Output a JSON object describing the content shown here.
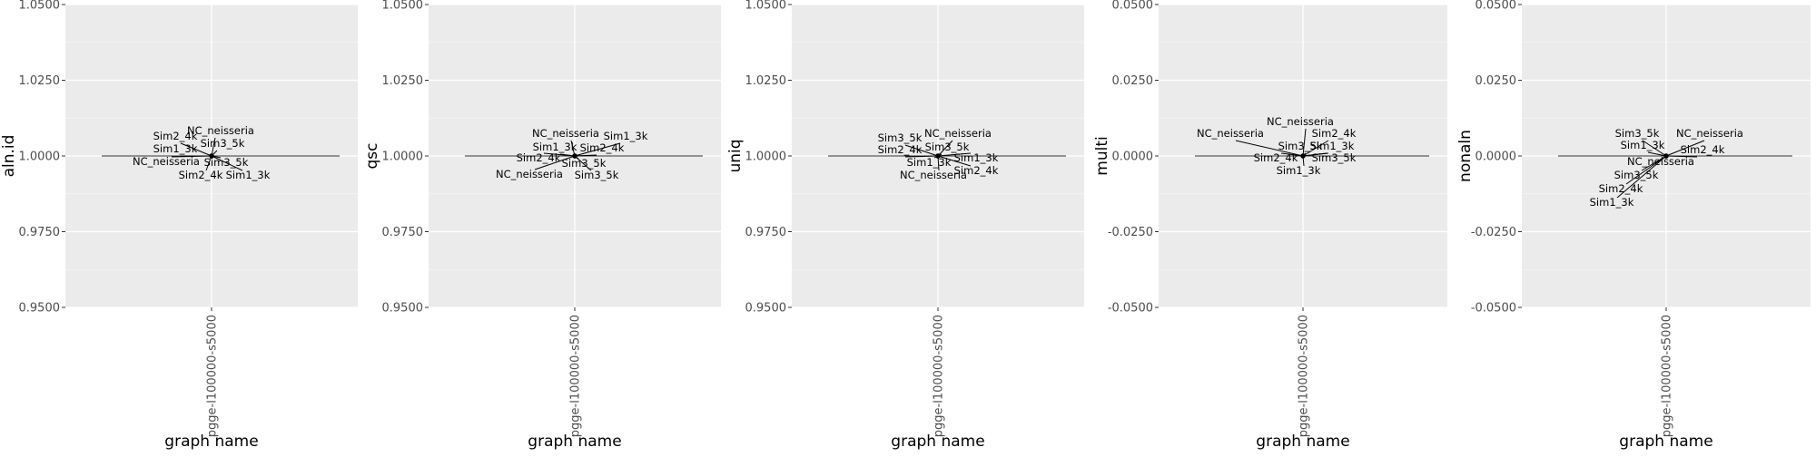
{
  "chart_data": [
    {
      "type": "scatter",
      "title": "",
      "xlabel": "graph name",
      "ylabel": "aln.id",
      "categories": [
        "pgge-l100000-s5000"
      ],
      "ylim": [
        0.95,
        1.05
      ],
      "yticks": [
        "0.9500",
        "0.9750",
        "1.0000",
        "1.0250",
        "1.0500"
      ],
      "ytick_values": [
        0.95,
        0.975,
        1.0,
        1.025,
        1.05
      ],
      "hline": 1.0,
      "grid": true,
      "points": [
        {
          "label": "NC_neisseria",
          "x": "pgge-l100000-s5000",
          "y": 1.0
        },
        {
          "label": "Sim3_5k",
          "x": "pgge-l100000-s5000",
          "y": 1.0
        },
        {
          "label": "Sim2_4k",
          "x": "pgge-l100000-s5000",
          "y": 1.0
        },
        {
          "label": "Sim1_3k",
          "x": "pgge-l100000-s5000",
          "y": 1.0
        },
        {
          "label": "NC_neisseria",
          "x": "pgge-l100000-s5000",
          "y": 1.0
        },
        {
          "label": "Sim3_5k",
          "x": "pgge-l100000-s5000",
          "y": 1.0
        },
        {
          "label": "Sim2_4k",
          "x": "pgge-l100000-s5000",
          "y": 1.0
        },
        {
          "label": "Sim1_3k",
          "x": "pgge-l100000-s5000",
          "y": 1.0
        }
      ]
    },
    {
      "type": "scatter",
      "title": "",
      "xlabel": "graph name",
      "ylabel": "qsc",
      "categories": [
        "pgge-l100000-s5000"
      ],
      "ylim": [
        0.95,
        1.05
      ],
      "yticks": [
        "0.9500",
        "0.9750",
        "1.0000",
        "1.0250",
        "1.0500"
      ],
      "ytick_values": [
        0.95,
        0.975,
        1.0,
        1.025,
        1.05
      ],
      "hline": 1.0,
      "grid": true,
      "points": [
        {
          "label": "NC_neisseria",
          "x": "pgge-l100000-s5000",
          "y": 1.0
        },
        {
          "label": "Sim1_3k",
          "x": "pgge-l100000-s5000",
          "y": 1.0
        },
        {
          "label": "Sim1_3k",
          "x": "pgge-l100000-s5000",
          "y": 1.0
        },
        {
          "label": "Sim2_4k",
          "x": "pgge-l100000-s5000",
          "y": 1.0
        },
        {
          "label": "Sim2_4k",
          "x": "pgge-l100000-s5000",
          "y": 1.0
        },
        {
          "label": "Sim3_5k",
          "x": "pgge-l100000-s5000",
          "y": 1.0
        },
        {
          "label": "NC_neisseria",
          "x": "pgge-l100000-s5000",
          "y": 1.0
        },
        {
          "label": "Sim3_5k",
          "x": "pgge-l100000-s5000",
          "y": 1.0
        }
      ]
    },
    {
      "type": "scatter",
      "title": "",
      "xlabel": "graph name",
      "ylabel": "uniq",
      "categories": [
        "pgge-l100000-s5000"
      ],
      "ylim": [
        0.95,
        1.05
      ],
      "yticks": [
        "0.9500",
        "0.9750",
        "1.0000",
        "1.0250",
        "1.0500"
      ],
      "ytick_values": [
        0.95,
        0.975,
        1.0,
        1.025,
        1.05
      ],
      "hline": 1.0,
      "grid": true,
      "points": [
        {
          "label": "Sim3_5k",
          "x": "pgge-l100000-s5000",
          "y": 1.0
        },
        {
          "label": "NC_neisseria",
          "x": "pgge-l100000-s5000",
          "y": 1.0
        },
        {
          "label": "Sim3_5k",
          "x": "pgge-l100000-s5000",
          "y": 1.0
        },
        {
          "label": "Sim2_4k",
          "x": "pgge-l100000-s5000",
          "y": 1.0
        },
        {
          "label": "Sim1_3k",
          "x": "pgge-l100000-s5000",
          "y": 1.0
        },
        {
          "label": "Sim1_3k",
          "x": "pgge-l100000-s5000",
          "y": 1.0
        },
        {
          "label": "Sim2_4k",
          "x": "pgge-l100000-s5000",
          "y": 1.0
        },
        {
          "label": "NC_neisseria",
          "x": "pgge-l100000-s5000",
          "y": 1.0
        }
      ]
    },
    {
      "type": "scatter",
      "title": "",
      "xlabel": "graph name",
      "ylabel": "multi",
      "categories": [
        "pgge-l100000-s5000"
      ],
      "ylim": [
        -0.05,
        0.05
      ],
      "yticks": [
        "-0.0500",
        "-0.0250",
        "0.0000",
        "0.0250",
        "0.0500"
      ],
      "ytick_values": [
        -0.05,
        -0.025,
        0.0,
        0.025,
        0.05
      ],
      "hline": 0.0,
      "grid": true,
      "points": [
        {
          "label": "NC_neisseria",
          "x": "pgge-l100000-s5000",
          "y": 0.0
        },
        {
          "label": "NC_neisseria",
          "x": "pgge-l100000-s5000",
          "y": 0.0
        },
        {
          "label": "Sim2_4k",
          "x": "pgge-l100000-s5000",
          "y": 0.0
        },
        {
          "label": "Sim3_5k",
          "x": "pgge-l100000-s5000",
          "y": 0.0
        },
        {
          "label": "Sim1_3k",
          "x": "pgge-l100000-s5000",
          "y": 0.0
        },
        {
          "label": "Sim2_4k",
          "x": "pgge-l100000-s5000",
          "y": 0.0
        },
        {
          "label": "Sim3_5k",
          "x": "pgge-l100000-s5000",
          "y": 0.0
        },
        {
          "label": "Sim1_3k",
          "x": "pgge-l100000-s5000",
          "y": 0.0
        }
      ]
    },
    {
      "type": "scatter",
      "title": "",
      "xlabel": "graph name",
      "ylabel": "nonaln",
      "categories": [
        "pgge-l100000-s5000"
      ],
      "ylim": [
        -0.05,
        0.05
      ],
      "yticks": [
        "-0.0500",
        "-0.0250",
        "0.0000",
        "0.0250",
        "0.0500"
      ],
      "ytick_values": [
        -0.05,
        -0.025,
        0.0,
        0.025,
        0.05
      ],
      "hline": 0.0,
      "grid": true,
      "points": [
        {
          "label": "Sim3_5k",
          "x": "pgge-l100000-s5000",
          "y": 0.0
        },
        {
          "label": "NC_neisseria",
          "x": "pgge-l100000-s5000",
          "y": 0.0
        },
        {
          "label": "Sim1_3k",
          "x": "pgge-l100000-s5000",
          "y": 0.0
        },
        {
          "label": "Sim2_4k",
          "x": "pgge-l100000-s5000",
          "y": 0.0
        },
        {
          "label": "NC_neisseria",
          "x": "pgge-l100000-s5000",
          "y": 0.0
        },
        {
          "label": "Sim3_5k",
          "x": "pgge-l100000-s5000",
          "y": 0.0
        },
        {
          "label": "Sim2_4k",
          "x": "pgge-l100000-s5000",
          "y": 0.0
        },
        {
          "label": "Sim1_3k",
          "x": "pgge-l100000-s5000",
          "y": 0.0
        }
      ]
    }
  ],
  "colors": {
    "panel_background": "#ebebeb",
    "grid_major": "#ffffff",
    "grid_minor": "#f5f5f5",
    "text": "#000000",
    "axis_text": "#4d4d4d",
    "line": "#333333"
  }
}
